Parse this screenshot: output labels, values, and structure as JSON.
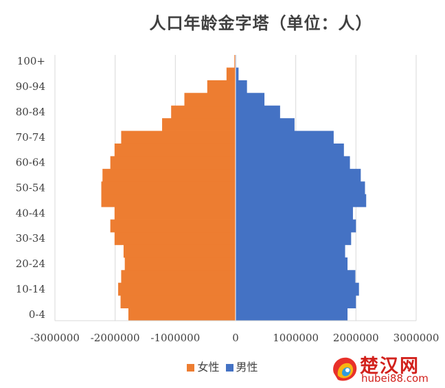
{
  "chart_data": {
    "type": "bar",
    "orientation": "horizontal",
    "stacked": "diverging",
    "title": "人口年龄金字塔（单位：人）",
    "xlabel": "",
    "ylabel": "",
    "xlim": [
      -3000000,
      3000000
    ],
    "x_ticks": [
      -3000000,
      -2000000,
      -1000000,
      0,
      1000000,
      2000000,
      3000000
    ],
    "x_tick_labels": [
      "-3000000",
      "-2000000",
      "-1000000",
      "0",
      "1000000",
      "2000000",
      "3000000"
    ],
    "grid": "vertical",
    "legend_position": "bottom",
    "categories": [
      "0-4",
      "5-9",
      "10-14",
      "15-19",
      "20-24",
      "25-29",
      "30-34",
      "35-39",
      "40-44",
      "45-49",
      "50-54",
      "55-59",
      "60-64",
      "65-69",
      "70-74",
      "75-79",
      "80-84",
      "85-89",
      "90-94",
      "95-99",
      "100+"
    ],
    "category_labels_shown": [
      "0-4",
      "",
      "10-14",
      "",
      "20-24",
      "",
      "30-34",
      "",
      "40-44",
      "",
      "50-54",
      "",
      "60-64",
      "",
      "70-74",
      "",
      "80-84",
      "",
      "90-94",
      "",
      "100+"
    ],
    "series": [
      {
        "name": "女性",
        "color": "#ed7d31",
        "values": [
          -1780000,
          -1910000,
          -1950000,
          -1900000,
          -1840000,
          -1860000,
          -2010000,
          -2080000,
          -2010000,
          -2230000,
          -2230000,
          -2210000,
          -2080000,
          -2010000,
          -1900000,
          -1220000,
          -1070000,
          -850000,
          -470000,
          -150000,
          -20000
        ]
      },
      {
        "name": "男性",
        "color": "#4472c4",
        "values": [
          1860000,
          2000000,
          2050000,
          1990000,
          1860000,
          1820000,
          1920000,
          2000000,
          1950000,
          2170000,
          2150000,
          2080000,
          1900000,
          1800000,
          1630000,
          980000,
          740000,
          480000,
          190000,
          50000,
          10000
        ]
      }
    ]
  },
  "watermark": {
    "brand": "楚汉网",
    "domain": "hubei88.com"
  }
}
